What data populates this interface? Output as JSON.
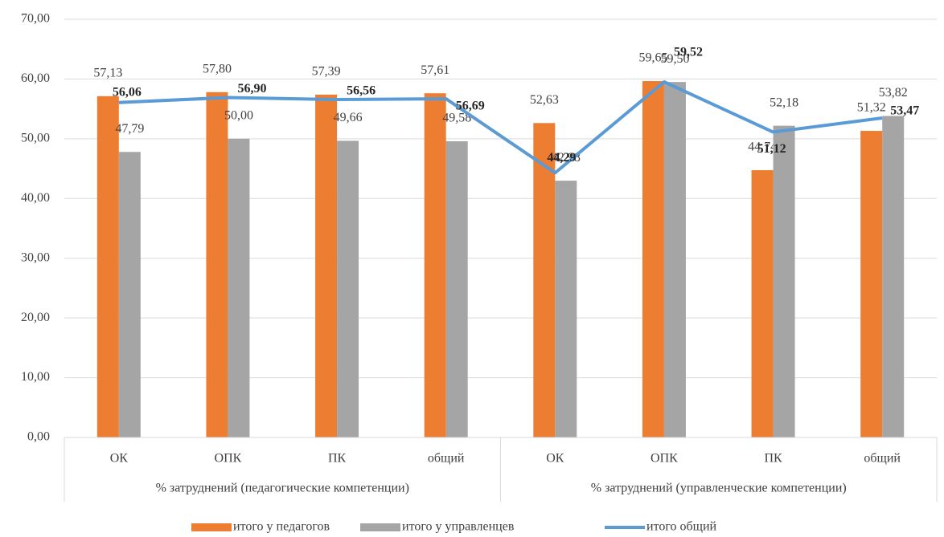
{
  "chart_data": {
    "type": "bar",
    "groups": [
      {
        "name": "% затруднений (педагогические компетенции)",
        "categories": [
          "ОК",
          "ОПК",
          "ПК",
          "общий"
        ]
      },
      {
        "name": "% затруднений (управленческие компетенции)",
        "categories": [
          "ОК",
          "ОПК",
          "ПК",
          "общий"
        ]
      }
    ],
    "series": [
      {
        "name": "итого у педагогов",
        "type": "bar",
        "color": "#ed7d31",
        "values": [
          57.13,
          57.8,
          57.39,
          57.61,
          52.63,
          59.65,
          44.74,
          51.32
        ],
        "value_labels": [
          "57,13",
          "57,80",
          "57,39",
          "57,61",
          "52,63",
          "59,65",
          "44,74",
          "51,32"
        ]
      },
      {
        "name": "итого у управленцев",
        "type": "bar",
        "color": "#a5a5a5",
        "values": [
          47.79,
          50.0,
          49.66,
          49.58,
          42.98,
          59.5,
          52.18,
          53.82
        ],
        "value_labels": [
          "47,79",
          "50,00",
          "49,66",
          "49,58",
          "42,98",
          "59,50",
          "52,18",
          "53,82"
        ]
      },
      {
        "name": "итого общий",
        "type": "line",
        "color": "#5b9bd5",
        "values": [
          56.06,
          56.9,
          56.56,
          56.69,
          44.29,
          59.52,
          51.12,
          53.47
        ],
        "value_labels": [
          "56,06",
          "56,90",
          "56,56",
          "56,69",
          "44,29",
          "59,52",
          "51,12",
          "53,47"
        ]
      }
    ],
    "ylim": [
      0,
      70
    ],
    "yticks": [
      {
        "value": 0,
        "label": "0,00"
      },
      {
        "value": 10,
        "label": "10,00"
      },
      {
        "value": 20,
        "label": "20,00"
      },
      {
        "value": 30,
        "label": "30,00"
      },
      {
        "value": 40,
        "label": "40,00"
      },
      {
        "value": 50,
        "label": "50,00"
      },
      {
        "value": 60,
        "label": "60,00"
      },
      {
        "value": 70,
        "label": "70,00"
      }
    ],
    "grid": true,
    "legend": "bottom"
  }
}
